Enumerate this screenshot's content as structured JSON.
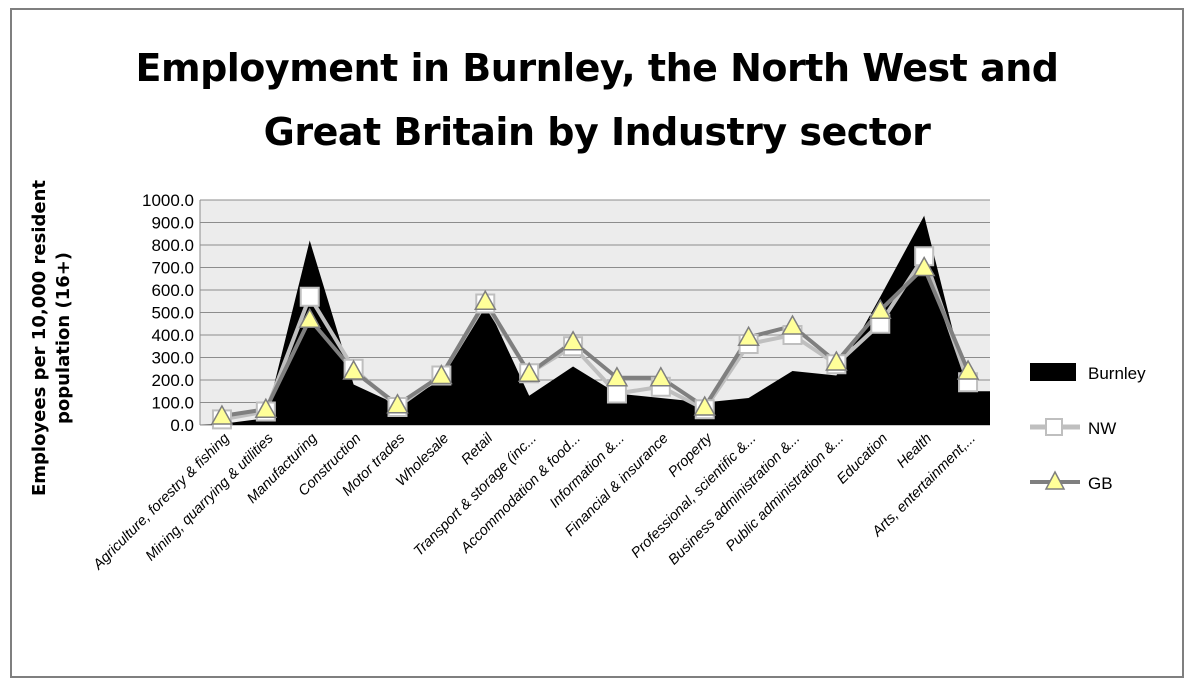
{
  "chart_data": {
    "type": "area",
    "title": [
      "Employment in Burnley, the North West and",
      "Great Britain by Industry sector"
    ],
    "ylabel": [
      "Employees per 10,000 resident",
      "population  (16+)"
    ],
    "ylim": [
      0,
      1000
    ],
    "yticks": [
      "0.0",
      "100.0",
      "200.0",
      "300.0",
      "400.0",
      "500.0",
      "600.0",
      "700.0",
      "800.0",
      "900.0",
      "1000.0"
    ],
    "grid": true,
    "legend_position": "right",
    "categories": [
      "Agriculture, forestry & fishing",
      "Mining, quarrying & utilities",
      "Manufacturing",
      "Construction",
      "Motor trades",
      "Wholesale",
      "Retail",
      "Transport & storage (inc...",
      "Accommodation & food...",
      "Information &...",
      "Financial & insurance",
      "Property",
      "Professional, scientific &...",
      "Business administration &...",
      "Public administration &...",
      "Education",
      "Health",
      "Arts, entertainment,..."
    ],
    "series": [
      {
        "name": "Burnley",
        "kind": "area",
        "color": "#000000",
        "values": [
          5,
          30,
          820,
          180,
          90,
          200,
          550,
          130,
          260,
          140,
          120,
          100,
          120,
          240,
          220,
          570,
          930,
          150
        ]
      },
      {
        "name": "NW",
        "kind": "line",
        "color": "#bfbfbf",
        "marker": "square",
        "values": [
          25,
          60,
          570,
          250,
          80,
          220,
          540,
          230,
          350,
          140,
          170,
          70,
          360,
          400,
          270,
          450,
          750,
          190
        ]
      },
      {
        "name": "GB",
        "kind": "line",
        "color": "#7f7f7f",
        "marker": "triangle",
        "values": [
          40,
          70,
          470,
          240,
          90,
          220,
          550,
          230,
          370,
          210,
          210,
          80,
          390,
          440,
          280,
          510,
          700,
          240
        ]
      }
    ]
  }
}
